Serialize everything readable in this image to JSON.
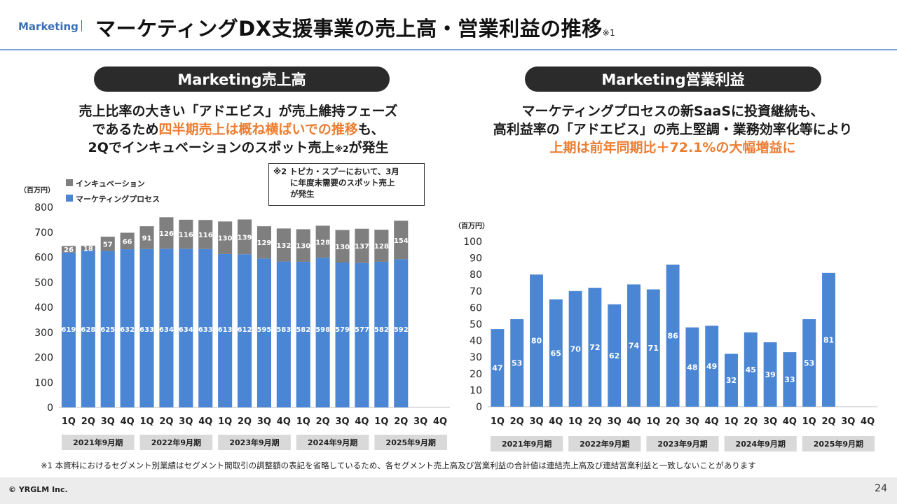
{
  "header": {
    "section": "Marketing",
    "title": "マーケティングDX支援事業の売上高・営業利益の推移",
    "title_note": "※1"
  },
  "left_panel": {
    "pill": "Marketing売上高",
    "lead_line1": "売上比率の大きい「アドエビス」が売上維持フェーズ",
    "lead_line2_a": "であるため",
    "lead_line2_b": "四半期売上は概ね横ばいでの推移",
    "lead_line2_c": "も、",
    "lead_line3_a": "2Qでインキュベーションのスポット売上",
    "lead_line3_note": "※2",
    "lead_line3_b": "が発生",
    "callout_line1": "※2 トピカ・スプーにおいて、3月",
    "callout_line2": "に年度末需要のスポット売上",
    "callout_line3": "が発生"
  },
  "right_panel": {
    "pill": "Marketing営業利益",
    "lead_line1": "マーケティングプロセスの新SaaSに投資継続も、",
    "lead_line2": "高利益率の「アドエビス」の売上堅調・業務効率化等により",
    "lead_line3": "上期は前年同期比＋72.1%の大幅増益に"
  },
  "chart_data": [
    {
      "type": "bar",
      "stacked": true,
      "unit_label": "（百万円）",
      "categories": [
        "1Q",
        "2Q",
        "3Q",
        "4Q",
        "1Q",
        "2Q",
        "3Q",
        "4Q",
        "1Q",
        "2Q",
        "3Q",
        "4Q",
        "1Q",
        "2Q",
        "3Q",
        "4Q",
        "1Q",
        "2Q",
        "3Q",
        "4Q"
      ],
      "groups": [
        "2021年9月期",
        "2022年9月期",
        "2023年9月期",
        "2024年9月期",
        "2025年9月期"
      ],
      "series": [
        {
          "name": "マーケティングプロセス",
          "color": "#4a86d4",
          "values": [
            619,
            628,
            625,
            632,
            633,
            634,
            634,
            633,
            613,
            612,
            595,
            583,
            582,
            598,
            579,
            577,
            582,
            592,
            null,
            null
          ]
        },
        {
          "name": "インキュベーション",
          "color": "#7f7f7f",
          "values": [
            26,
            18,
            57,
            66,
            91,
            126,
            116,
            116,
            130,
            139,
            129,
            132,
            130,
            128,
            130,
            137,
            128,
            154,
            null,
            null
          ]
        }
      ],
      "ylim": [
        0,
        800
      ],
      "yticks": [
        0,
        100,
        200,
        300,
        400,
        500,
        600,
        700,
        800
      ],
      "legend": "top-left"
    },
    {
      "type": "bar",
      "unit_label": "（百万円）",
      "categories": [
        "1Q",
        "2Q",
        "3Q",
        "4Q",
        "1Q",
        "2Q",
        "3Q",
        "4Q",
        "1Q",
        "2Q",
        "3Q",
        "4Q",
        "1Q",
        "2Q",
        "3Q",
        "4Q",
        "1Q",
        "2Q",
        "3Q",
        "4Q"
      ],
      "groups": [
        "2021年9月期",
        "2022年9月期",
        "2023年9月期",
        "2024年9月期",
        "2025年9月期"
      ],
      "series": [
        {
          "color": "#4a86d4",
          "values": [
            47,
            53,
            80,
            65,
            70,
            72,
            62,
            74,
            71,
            86,
            48,
            49,
            32,
            45,
            39,
            33,
            53,
            81,
            null,
            null
          ]
        }
      ],
      "ylim": [
        0,
        100
      ],
      "yticks": [
        0,
        10,
        20,
        30,
        40,
        50,
        60,
        70,
        80,
        90,
        100
      ]
    }
  ],
  "footnote": "※1 本資料におけるセグメント別業績はセグメント間取引の調整額の表記を省略しているため、各セグメント売上高及び営業利益の合計値は連結売上高及び連結営業利益と一致しないことがあります",
  "footer": {
    "copyright": "© YRGLM Inc.",
    "page": "24"
  }
}
